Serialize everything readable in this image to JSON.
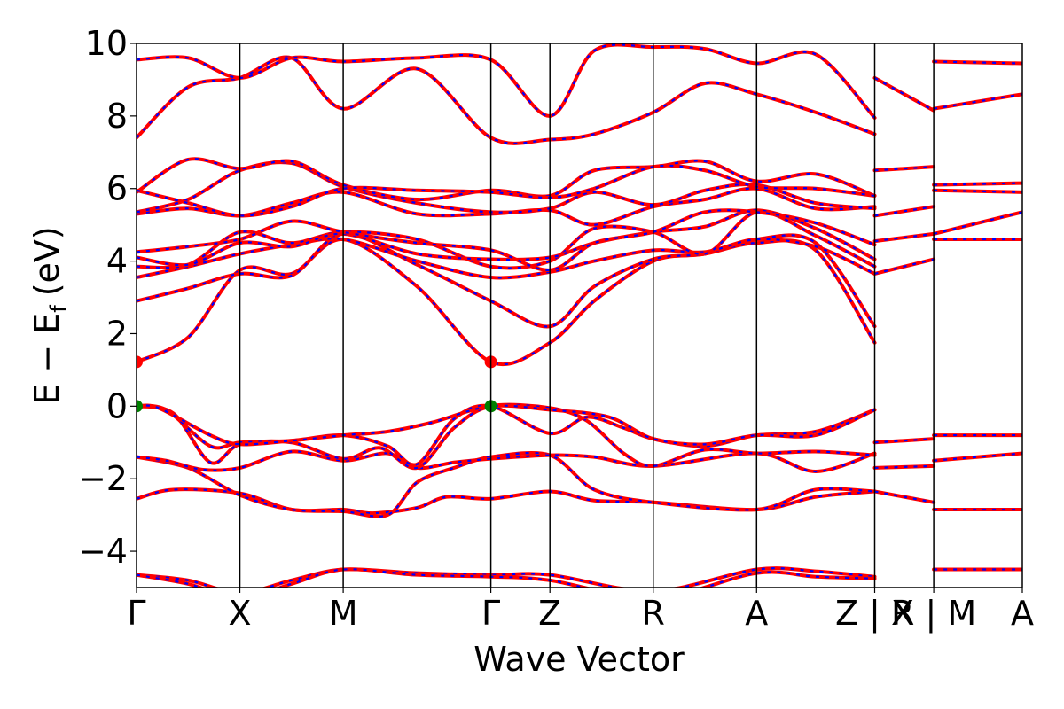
{
  "chart_data": {
    "type": "line",
    "title": "",
    "xlabel": "Wave Vector",
    "ylabel": "E − E",
    "ylabel_sub": "f",
    "ylabel_unit": "(eV)",
    "ylim": [
      -5,
      10
    ],
    "yticks": [
      -4,
      -2,
      0,
      2,
      4,
      6,
      8,
      10
    ],
    "grid": false,
    "legend": "none",
    "k_path": {
      "xlim": [
        0,
        6.0
      ],
      "positions": [
        0,
        0.7,
        1.4,
        2.4,
        2.8,
        3.5,
        4.2,
        5.0,
        5.4,
        6.0
      ],
      "labels": [
        "Γ",
        "X",
        "M",
        "Γ",
        "Z",
        "R",
        "A",
        "Z | X",
        "R | M",
        "A"
      ],
      "gaps": [
        [
          5.0,
          5.0
        ],
        [
          5.4,
          5.4
        ]
      ]
    },
    "styles": {
      "band_color": "#ff0000",
      "overlay_color": "#0000ff",
      "cbm_color": "#ff0000",
      "vbm_color": "#008000"
    },
    "extrema": {
      "cbm": [
        {
          "x": 0,
          "y": 1.22
        },
        {
          "x": 2.4,
          "y": 1.22
        }
      ],
      "vbm": [
        {
          "x": 0,
          "y": 0.0
        },
        {
          "x": 2.4,
          "y": 0.0
        }
      ]
    },
    "series": [
      {
        "x": [
          0,
          0.35,
          0.7,
          1.05,
          1.4,
          1.9,
          2.4,
          2.8,
          3.5,
          4.2,
          4.6,
          5.0
        ],
        "y": [
          -4.65,
          -4.8,
          -5.15,
          -4.8,
          -4.5,
          -4.6,
          -4.65,
          -4.65,
          -5.1,
          -4.5,
          -4.55,
          -4.7
        ]
      },
      {
        "x": [
          0,
          0.35,
          0.7,
          1.05,
          1.4,
          1.9,
          2.4,
          2.8,
          3.5,
          4.2,
          4.6,
          5.0
        ],
        "y": [
          -4.65,
          -4.9,
          -5.3,
          -4.9,
          -4.5,
          -4.65,
          -4.7,
          -4.8,
          -5.3,
          -4.6,
          -4.7,
          -4.75
        ]
      },
      {
        "x": [
          0,
          0.25,
          0.7,
          1.05,
          1.4,
          1.6,
          1.9,
          2.1,
          2.4,
          2.8,
          3.1,
          3.5,
          4.2,
          4.6,
          5.0
        ],
        "y": [
          -2.55,
          -2.3,
          -2.4,
          -2.85,
          -2.85,
          -2.95,
          -2.8,
          -2.5,
          -2.55,
          -2.35,
          -2.6,
          -2.65,
          -2.85,
          -2.5,
          -2.35
        ]
      },
      {
        "x": [
          0,
          0.35,
          0.7,
          1.05,
          1.4,
          1.7,
          1.9,
          2.15,
          2.4,
          2.8,
          3.1,
          3.5,
          4.2,
          4.6,
          5.0
        ],
        "y": [
          -1.4,
          -1.7,
          -2.45,
          -2.85,
          -2.9,
          -3.0,
          -2.1,
          -1.7,
          -1.4,
          -1.35,
          -2.3,
          -2.65,
          -2.85,
          -2.3,
          -2.35
        ]
      },
      {
        "x": [
          0,
          0.2,
          0.45,
          0.7,
          1.05,
          1.4,
          1.7,
          1.9,
          2.15,
          2.4,
          2.8,
          3.1,
          3.5,
          4.2,
          4.6,
          5.0
        ],
        "y": [
          -1.4,
          -1.5,
          -1.75,
          -1.7,
          -1.25,
          -1.5,
          -1.3,
          -1.7,
          -1.55,
          -1.45,
          -1.35,
          -1.4,
          -1.65,
          -1.3,
          -1.8,
          -1.3
        ]
      },
      {
        "x": [
          0,
          0.25,
          0.5,
          0.7,
          1.05,
          1.4,
          1.65,
          1.9,
          2.15,
          2.4,
          2.8,
          3.05,
          3.3,
          3.5,
          3.85,
          4.2,
          4.6,
          5.0
        ],
        "y": [
          0,
          -0.2,
          -1.55,
          -1.05,
          -1.0,
          -1.45,
          -1.15,
          -1.7,
          -0.6,
          0,
          -0.05,
          -0.4,
          -1.3,
          -1.65,
          -1.2,
          -1.3,
          -1.25,
          -1.35
        ]
      },
      {
        "x": [
          0,
          0.2,
          0.5,
          0.7,
          1.05,
          1.4,
          1.7,
          1.9,
          2.15,
          2.4,
          2.8,
          3.05,
          3.3,
          3.5,
          3.85,
          4.2,
          4.6,
          5.0
        ],
        "y": [
          0,
          -0.1,
          -1.1,
          -1.0,
          -0.95,
          -0.8,
          -1.1,
          -1.6,
          -0.35,
          0,
          -0.75,
          -0.3,
          -0.6,
          -0.9,
          -1.1,
          -0.8,
          -0.7,
          -0.1
        ]
      },
      {
        "x": [
          0,
          0.15,
          0.5,
          0.7,
          1.05,
          1.4,
          1.7,
          2.0,
          2.4,
          2.8,
          3.2,
          3.5,
          3.85,
          4.2,
          4.6,
          5.0
        ],
        "y": [
          0,
          -0.05,
          -0.8,
          -1.05,
          -0.95,
          -0.8,
          -0.7,
          -0.45,
          0,
          -0.1,
          -0.3,
          -0.9,
          -1.05,
          -0.8,
          -0.8,
          -0.1
        ]
      },
      {
        "x": [
          0,
          0.35,
          0.7,
          1.05,
          1.4,
          1.9,
          2.4,
          2.8,
          3.1,
          3.5,
          3.85,
          4.2,
          4.6,
          5.0
        ],
        "y": [
          1.22,
          1.9,
          3.75,
          3.65,
          4.6,
          3.3,
          1.22,
          1.75,
          2.9,
          4.0,
          4.2,
          4.5,
          4.3,
          1.75
        ]
      },
      {
        "x": [
          0,
          0.35,
          0.7,
          1.05,
          1.4,
          1.9,
          2.4,
          2.8,
          3.1,
          3.5,
          3.85,
          4.2,
          4.6,
          5.0
        ],
        "y": [
          2.9,
          3.25,
          3.65,
          3.6,
          4.75,
          3.9,
          2.9,
          2.2,
          3.3,
          4.05,
          4.2,
          4.6,
          4.5,
          2.2
        ]
      },
      {
        "x": [
          0,
          0.35,
          0.7,
          1.05,
          1.4,
          1.9,
          2.4,
          2.8,
          3.1,
          3.5,
          3.85,
          4.2,
          4.6,
          5.0
        ],
        "y": [
          3.55,
          3.85,
          4.2,
          4.45,
          4.6,
          4.0,
          3.55,
          3.7,
          4.0,
          4.3,
          4.25,
          4.6,
          4.4,
          3.65
        ]
      },
      {
        "x": [
          0,
          0.35,
          0.7,
          1.05,
          1.4,
          1.9,
          2.4,
          2.8,
          3.1,
          3.5,
          3.85,
          4.2,
          4.6,
          5.0
        ],
        "y": [
          3.85,
          3.9,
          4.8,
          4.5,
          4.8,
          4.6,
          3.85,
          4.0,
          4.9,
          4.8,
          4.2,
          5.35,
          4.7,
          3.85
        ]
      },
      {
        "x": [
          0,
          0.35,
          0.7,
          1.05,
          1.4,
          1.9,
          2.4,
          2.8,
          3.1,
          3.5,
          3.85,
          4.2,
          4.6,
          5.0
        ],
        "y": [
          4.1,
          3.9,
          4.5,
          4.4,
          4.75,
          4.2,
          4.05,
          4.1,
          4.5,
          4.8,
          4.95,
          5.4,
          4.9,
          4.05
        ]
      },
      {
        "x": [
          0,
          0.35,
          0.7,
          1.05,
          1.4,
          1.9,
          2.4,
          2.8,
          3.1,
          3.5,
          3.85,
          4.2,
          4.6,
          5.0
        ],
        "y": [
          4.25,
          4.4,
          4.6,
          5.1,
          4.8,
          4.5,
          4.3,
          3.75,
          4.5,
          4.8,
          5.35,
          5.35,
          5.05,
          4.45
        ]
      },
      {
        "x": [
          0,
          0.35,
          0.7,
          1.05,
          1.4,
          1.9,
          2.4,
          2.8,
          3.1,
          3.5,
          3.85,
          4.2,
          4.6,
          5.0
        ],
        "y": [
          5.3,
          5.45,
          5.25,
          5.6,
          5.9,
          5.3,
          5.3,
          5.4,
          5.0,
          5.5,
          5.7,
          6.0,
          5.45,
          5.5
        ]
      },
      {
        "x": [
          0,
          0.35,
          0.7,
          1.05,
          1.4,
          1.9,
          2.4,
          2.8,
          3.1,
          3.5,
          3.85,
          4.2,
          4.6,
          5.0
        ],
        "y": [
          5.35,
          5.7,
          6.5,
          6.7,
          6.05,
          5.6,
          5.35,
          5.45,
          5.9,
          5.55,
          5.95,
          6.1,
          5.6,
          5.45
        ]
      },
      {
        "x": [
          0,
          0.35,
          0.7,
          1.05,
          1.4,
          1.9,
          2.4,
          2.8,
          3.1,
          3.5,
          3.85,
          4.2,
          4.6,
          5.0
        ],
        "y": [
          5.9,
          6.8,
          6.55,
          6.75,
          6.1,
          5.7,
          5.95,
          5.8,
          6.5,
          6.6,
          6.75,
          6.2,
          6.4,
          5.8
        ]
      },
      {
        "x": [
          0,
          0.35,
          0.7,
          1.05,
          1.4,
          1.9,
          2.4,
          2.8,
          3.1,
          3.5,
          3.85,
          4.2,
          4.6,
          5.0
        ],
        "y": [
          5.95,
          5.6,
          5.25,
          5.5,
          6.0,
          5.95,
          5.9,
          5.75,
          6.0,
          6.6,
          6.5,
          6.05,
          6.0,
          5.8
        ]
      },
      {
        "x": [
          0,
          0.35,
          0.7,
          1.05,
          1.4,
          1.9,
          2.4,
          2.8,
          3.1,
          3.5,
          3.85,
          4.2,
          4.6,
          5.0
        ],
        "y": [
          7.4,
          8.8,
          9.05,
          9.6,
          8.2,
          9.3,
          7.4,
          7.35,
          7.5,
          8.1,
          8.9,
          8.6,
          8.1,
          7.5
        ]
      },
      {
        "x": [
          0,
          0.35,
          0.7,
          1.05,
          1.4,
          1.9,
          2.4,
          2.8,
          3.1,
          3.5,
          3.85,
          4.2,
          4.6,
          5.0
        ],
        "y": [
          9.55,
          9.6,
          9.05,
          9.6,
          9.5,
          9.6,
          9.55,
          8.0,
          9.8,
          9.9,
          9.85,
          9.45,
          9.7,
          7.95
        ]
      },
      {
        "x": [
          5.0,
          5.4
        ],
        "y": [
          9.05,
          8.15
        ]
      },
      {
        "x": [
          5.0,
          5.4
        ],
        "y": [
          6.5,
          6.6
        ]
      },
      {
        "x": [
          5.0,
          5.4
        ],
        "y": [
          5.25,
          5.5
        ]
      },
      {
        "x": [
          5.0,
          5.4
        ],
        "y": [
          4.55,
          4.75
        ]
      },
      {
        "x": [
          5.0,
          5.4
        ],
        "y": [
          3.65,
          4.05
        ]
      },
      {
        "x": [
          5.0,
          5.4
        ],
        "y": [
          -1.0,
          -0.9
        ]
      },
      {
        "x": [
          5.0,
          5.4
        ],
        "y": [
          -1.7,
          -1.65
        ]
      },
      {
        "x": [
          5.0,
          5.4
        ],
        "y": [
          -2.35,
          -2.65
        ]
      },
      {
        "x": [
          5.4,
          6.0
        ],
        "y": [
          9.5,
          9.45
        ]
      },
      {
        "x": [
          5.4,
          6.0
        ],
        "y": [
          8.2,
          8.6
        ]
      },
      {
        "x": [
          5.4,
          6.0
        ],
        "y": [
          6.1,
          6.15
        ]
      },
      {
        "x": [
          5.4,
          6.0
        ],
        "y": [
          5.95,
          5.9
        ]
      },
      {
        "x": [
          5.4,
          6.0
        ],
        "y": [
          4.75,
          5.35
        ]
      },
      {
        "x": [
          5.4,
          6.0
        ],
        "y": [
          4.6,
          4.6
        ]
      },
      {
        "x": [
          5.4,
          6.0
        ],
        "y": [
          -0.8,
          -0.8
        ]
      },
      {
        "x": [
          5.4,
          6.0
        ],
        "y": [
          -1.5,
          -1.3
        ]
      },
      {
        "x": [
          5.4,
          6.0
        ],
        "y": [
          -2.85,
          -2.85
        ]
      },
      {
        "x": [
          5.4,
          6.0
        ],
        "y": [
          -4.5,
          -4.5
        ]
      }
    ]
  }
}
